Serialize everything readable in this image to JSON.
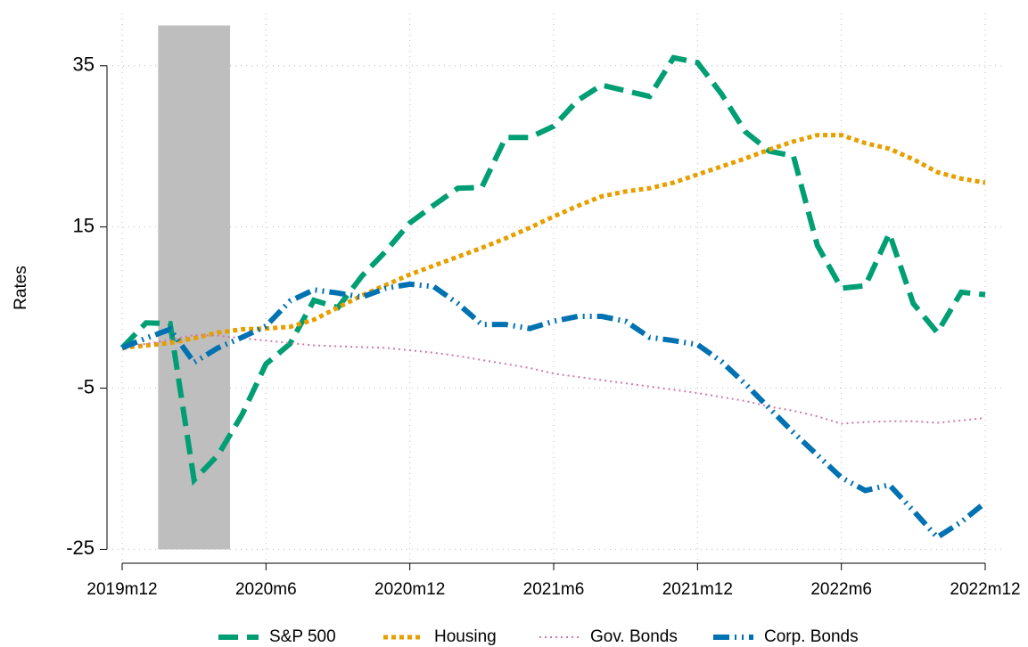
{
  "chart_data": {
    "type": "line",
    "y_label": "Rates",
    "categories": [
      "2019m12",
      null,
      null,
      null,
      null,
      null,
      "2020m6",
      null,
      null,
      null,
      null,
      null,
      "2020m12",
      null,
      null,
      null,
      null,
      null,
      "2021m6",
      null,
      null,
      null,
      null,
      null,
      "2021m12",
      null,
      null,
      null,
      null,
      null,
      "2022m6",
      null,
      null,
      null,
      null,
      null,
      "2022m12"
    ],
    "ylim": [
      -26.5,
      41.5
    ],
    "yticks": [
      -25,
      -5,
      15,
      35
    ],
    "grid": true,
    "legend": "bottom",
    "shade": {
      "x": [
        1.5,
        4.5
      ],
      "y": [
        -25,
        40
      ],
      "color": "#bebebe"
    },
    "series": [
      {
        "name": "S&P 500",
        "color": "#009e73",
        "dash": "dash",
        "values": [
          0.0,
          3.1,
          3.0,
          -16.4,
          -13.3,
          -8.3,
          -2.0,
          0.5,
          5.9,
          5.0,
          8.9,
          12.0,
          15.5,
          17.7,
          19.8,
          19.9,
          26.1,
          26.1,
          27.5,
          30.7,
          32.6,
          31.9,
          31.2,
          36.0,
          35.4,
          31.5,
          26.8,
          24.4,
          23.8,
          12.7,
          7.4,
          7.7,
          14.2,
          5.5,
          1.9,
          6.9,
          6.6
        ]
      },
      {
        "name": "Housing",
        "color": "#e69f00",
        "dash": "dot",
        "values": [
          0.0,
          0.3,
          0.6,
          1.2,
          1.9,
          2.3,
          2.4,
          2.6,
          3.5,
          5.0,
          6.5,
          7.8,
          9.1,
          10.2,
          11.3,
          12.4,
          13.6,
          14.9,
          16.3,
          17.6,
          18.8,
          19.4,
          19.8,
          20.5,
          21.5,
          22.5,
          23.5,
          24.6,
          25.6,
          26.4,
          26.4,
          25.4,
          24.7,
          23.4,
          21.8,
          21.0,
          20.5
        ]
      },
      {
        "name": "Gov. Bonds",
        "color": "#cc79a7",
        "dash": "fine",
        "values": [
          0.0,
          0.5,
          1.0,
          1.6,
          1.5,
          1.2,
          0.9,
          0.6,
          0.3,
          0.2,
          0.1,
          0.0,
          -0.3,
          -0.6,
          -1.0,
          -1.5,
          -2.0,
          -2.5,
          -3.2,
          -3.6,
          -4.0,
          -4.4,
          -4.8,
          -5.2,
          -5.6,
          -6.1,
          -6.6,
          -7.3,
          -7.8,
          -8.5,
          -9.4,
          -9.2,
          -9.1,
          -9.1,
          -9.3,
          -9.0,
          -8.7
        ]
      },
      {
        "name": "Corp. Bonds",
        "color": "#0072b2",
        "dash": "dashdot",
        "values": [
          0.0,
          1.2,
          2.3,
          -1.8,
          0.0,
          1.3,
          2.7,
          5.8,
          7.2,
          6.8,
          6.3,
          7.4,
          7.9,
          7.6,
          5.5,
          2.9,
          2.9,
          2.4,
          3.3,
          3.9,
          3.9,
          3.3,
          1.3,
          0.9,
          0.4,
          -1.7,
          -4.5,
          -7.5,
          -10.5,
          -13.3,
          -16.1,
          -17.7,
          -17.0,
          -20.2,
          -23.5,
          -21.6,
          -19.2
        ]
      }
    ]
  }
}
